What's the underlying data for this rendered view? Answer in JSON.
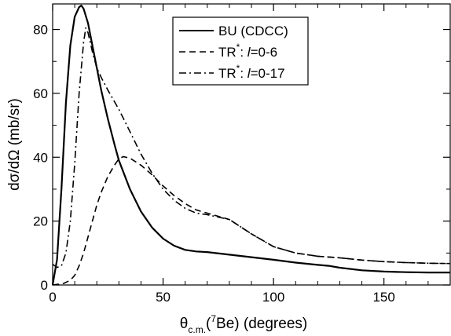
{
  "chart_data": {
    "type": "line",
    "xlabel": {
      "theta": "θ",
      "sub": "c.m.",
      "paren_open": "(",
      "sup": "7",
      "rest": "Be) (degrees)"
    },
    "ylabel": "dσ/dΩ (mb/sr)",
    "xlim": [
      0,
      180
    ],
    "ylim": [
      0,
      88
    ],
    "x_ticks": [
      "0",
      "50",
      "100",
      "150"
    ],
    "y_ticks": [
      "0",
      "20",
      "40",
      "60",
      "80"
    ],
    "grid": false,
    "legend_position": "top-center",
    "series": [
      {
        "name": "BU (CDCC)",
        "legend": {
          "main": "BU (CDCC)"
        },
        "style": "solid",
        "x": [
          0,
          2,
          4,
          6,
          8,
          10,
          12,
          13,
          14,
          16,
          18,
          20,
          22,
          25,
          28,
          30,
          35,
          40,
          45,
          50,
          55,
          60,
          65,
          70,
          80,
          90,
          100,
          110,
          120,
          125,
          130,
          140,
          150,
          160,
          170,
          180
        ],
        "y": [
          0,
          8,
          30,
          57,
          75,
          84,
          87,
          87.5,
          86.5,
          82,
          75,
          68,
          61,
          52,
          44,
          39,
          30,
          23,
          18,
          14.5,
          12.3,
          11,
          10.5,
          10.3,
          9.5,
          8.7,
          7.9,
          7,
          6.3,
          6,
          5.4,
          4.6,
          4.2,
          4.0,
          3.9,
          3.9
        ]
      },
      {
        "name": "TR*: l=0-6",
        "legend": {
          "main": "TR",
          "sup": "*",
          "sep": ": ",
          "ell": "l",
          "range": "=0-6"
        },
        "style": "dashed",
        "x": [
          0,
          5,
          8,
          10,
          12,
          14,
          16,
          18,
          20,
          22,
          25,
          28,
          30,
          32,
          35,
          40,
          45,
          50,
          55,
          60,
          65,
          70,
          80,
          90,
          100,
          110,
          120,
          130,
          140,
          150,
          160,
          170,
          180
        ],
        "y": [
          0,
          0.5,
          1.5,
          3,
          6,
          10,
          15,
          20,
          25,
          29,
          34,
          37.5,
          39.5,
          40.2,
          39.7,
          37.5,
          34.5,
          31,
          28,
          25.5,
          23.5,
          22.5,
          20.5,
          16,
          12,
          10,
          9,
          8.5,
          7.8,
          7.3,
          7,
          6.8,
          6.7
        ]
      },
      {
        "name": "TR*: l=0-17",
        "legend": {
          "main": "TR",
          "sup": "*",
          "sep": ": ",
          "ell": "l",
          "range": "=0-17"
        },
        "style": "dashdot",
        "x": [
          0,
          2,
          4,
          6,
          8,
          10,
          12,
          14,
          15,
          16,
          18,
          20,
          22,
          25,
          30,
          35,
          40,
          45,
          50,
          55,
          60,
          65,
          70,
          80,
          90,
          100,
          110,
          120,
          130,
          140,
          150,
          160,
          170,
          180
        ],
        "y": [
          6.5,
          5.5,
          6,
          10,
          20,
          38,
          60,
          76,
          80.5,
          79,
          73,
          68,
          65,
          61,
          55,
          48,
          41,
          35,
          30,
          26.5,
          24,
          22.5,
          22,
          20.5,
          16,
          12,
          10,
          9,
          8.5,
          7.8,
          7.3,
          7,
          6.8,
          6.7
        ]
      }
    ]
  }
}
